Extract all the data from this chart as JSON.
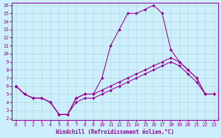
{
  "xlabel": "Windchill (Refroidissement éolien,°C)",
  "line_color": "#990099",
  "bg_color": "#cceeff",
  "grid_color": "#aaddcc",
  "xlim": [
    0,
    23
  ],
  "ylim": [
    2,
    16
  ],
  "xticks": [
    0,
    1,
    2,
    3,
    4,
    5,
    6,
    7,
    8,
    9,
    10,
    11,
    12,
    13,
    14,
    15,
    16,
    17,
    18,
    19,
    20,
    21,
    22,
    23
  ],
  "yticks": [
    2,
    3,
    4,
    5,
    6,
    7,
    8,
    9,
    10,
    11,
    12,
    13,
    14,
    15,
    16
  ],
  "line1_x": [
    0,
    1,
    2,
    3,
    4,
    5,
    6,
    7,
    8,
    9,
    10,
    11,
    12,
    13,
    14,
    15,
    16,
    17,
    18,
    19,
    20,
    21,
    22,
    23
  ],
  "line1_y": [
    6,
    5,
    4.5,
    4.5,
    4,
    2.5,
    2.5,
    4.5,
    5,
    5,
    7,
    11,
    13,
    15,
    15,
    15.5,
    16,
    15,
    10.5,
    9,
    8,
    7,
    5,
    5
  ],
  "line2_x": [
    0,
    1,
    2,
    3,
    4,
    5,
    6,
    7,
    8,
    9,
    10,
    11,
    12,
    13,
    14,
    15,
    16,
    17,
    18,
    19,
    20,
    21,
    22,
    23
  ],
  "line2_y": [
    6,
    5,
    4.5,
    4.5,
    4,
    2.5,
    2.5,
    4.5,
    5,
    5,
    5.5,
    6,
    6.5,
    7,
    7.5,
    8,
    8.5,
    9,
    9.5,
    9,
    8,
    7,
    5,
    5
  ],
  "line3_x": [
    0,
    1,
    2,
    3,
    4,
    5,
    6,
    7,
    8,
    9,
    10,
    11,
    12,
    13,
    14,
    15,
    16,
    17,
    18,
    19,
    20,
    21,
    22,
    23
  ],
  "line3_y": [
    6,
    5,
    4.5,
    4.5,
    4,
    2.5,
    2.5,
    4,
    4.5,
    4.5,
    5,
    5.5,
    6,
    6.5,
    7,
    7.5,
    8,
    8.5,
    9,
    8.5,
    7.5,
    6.5,
    5,
    5
  ]
}
